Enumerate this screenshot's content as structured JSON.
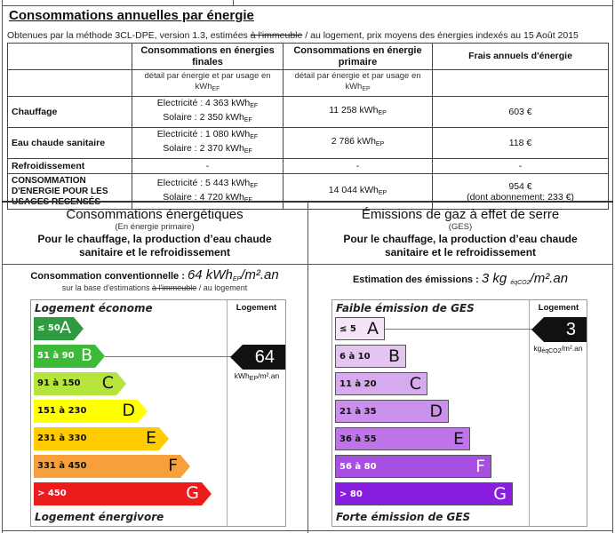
{
  "section_title": "Consommations annuelles par énergie",
  "subtitle": {
    "before": "Obtenues par la méthode 3CL-DPE, version 1.3, estimées ",
    "struck": "à l'immeuble",
    "after": " / au logement, prix moyens des énergies indexés au 15 Août 2015"
  },
  "table": {
    "headers": [
      "",
      "Consommations en énergies finales",
      "Consommations en énergie primaire",
      "Frais annuels d'énergie"
    ],
    "detail_ef": "détail par énergie et par usage en kWh",
    "detail_ep": "détail par énergie et par usage en kWh",
    "unit_ef": "EF",
    "unit_ep": "EP",
    "rows": [
      {
        "label": "Chauffage",
        "final": [
          "Electricité : 4 363 kWh",
          "Solaire : 2 350 kWh"
        ],
        "primary": "11 258 kWh",
        "cost": "603 €"
      },
      {
        "label": "Eau chaude sanitaire",
        "final": [
          "Electricité : 1 080 kWh",
          "Solaire : 2 370 kWh"
        ],
        "primary": "2 786 kWh",
        "cost": "118 €"
      },
      {
        "label": "Refroidissement",
        "final": [
          "-"
        ],
        "primary": "-",
        "cost": "-",
        "dash": true
      },
      {
        "label": "CONSOMMATION D'ENERGIE POUR LES USAGES RECENSÉS",
        "final": [
          "Electricité : 5 443 kWh",
          "Solaire : 4 720 kWh"
        ],
        "primary": "14 044 kWh",
        "cost": "954 €",
        "cost2": "(dont abonnement: 233 €)"
      }
    ]
  },
  "energy": {
    "title": "Consommations énergétiques",
    "paren": "(En énergie primaire)",
    "desc": "Pour le chauffage, la production d’eau chaude sanitaire et le refroidissement",
    "conv_label": "Consommation conventionnelle : ",
    "conv_value": "64 kWh",
    "conv_sub": "EP",
    "conv_unit": "/m².an",
    "basis_before": "sur la base d'estimations ",
    "basis_struck": "à l'immeuble",
    "basis_after": " / au logement",
    "top_label": "Logement économe",
    "bottom_label": "Logement énergivore",
    "column_label": "Logement",
    "value": "64",
    "value_class": "B",
    "unit": "kWh",
    "unit_sub": "EP",
    "unit_after": "/m².an",
    "classes": [
      {
        "letter": "A",
        "range": "≤ 50",
        "color": "#2f9a3f"
      },
      {
        "letter": "B",
        "range": "51 à 90",
        "color": "#3dba3a"
      },
      {
        "letter": "C",
        "range": "91 à 150",
        "color": "#b5e53c"
      },
      {
        "letter": "D",
        "range": "151 à 230",
        "color": "#ffff00"
      },
      {
        "letter": "E",
        "range": "231 à 330",
        "color": "#ffcc00"
      },
      {
        "letter": "F",
        "range": "331 à 450",
        "color": "#f7a03b"
      },
      {
        "letter": "G",
        "range": "> 450",
        "color": "#ed1c1c"
      }
    ]
  },
  "ges": {
    "title": "Émissions de gaz à effet de serre",
    "paren": "(GES)",
    "desc": "Pour le chauffage, la production d’eau chaude sanitaire et le refroidissement",
    "est_label": "Estimation des émissions : ",
    "est_value": "3 kg ",
    "est_sub": "éqCO2",
    "est_unit": "/m².an",
    "top_label": "Faible émission de GES",
    "bottom_label": "Forte émission de GES",
    "column_label": "Logement",
    "value": "3",
    "value_class": "A",
    "unit": "kg",
    "unit_sub": "éqCO2",
    "unit_after": "/m².an",
    "classes": [
      {
        "letter": "A",
        "range": "≤ 5",
        "color": "#f5e4f8"
      },
      {
        "letter": "B",
        "range": "6 à 10",
        "color": "#e4c5f1"
      },
      {
        "letter": "C",
        "range": "11 à 20",
        "color": "#d7aaef"
      },
      {
        "letter": "D",
        "range": "21 à 35",
        "color": "#cb90ec"
      },
      {
        "letter": "E",
        "range": "36 à 55",
        "color": "#bf75e9"
      },
      {
        "letter": "F",
        "range": "56 à 80",
        "color": "#a74fe1"
      },
      {
        "letter": "G",
        "range": "> 80",
        "color": "#891ee0"
      }
    ]
  }
}
